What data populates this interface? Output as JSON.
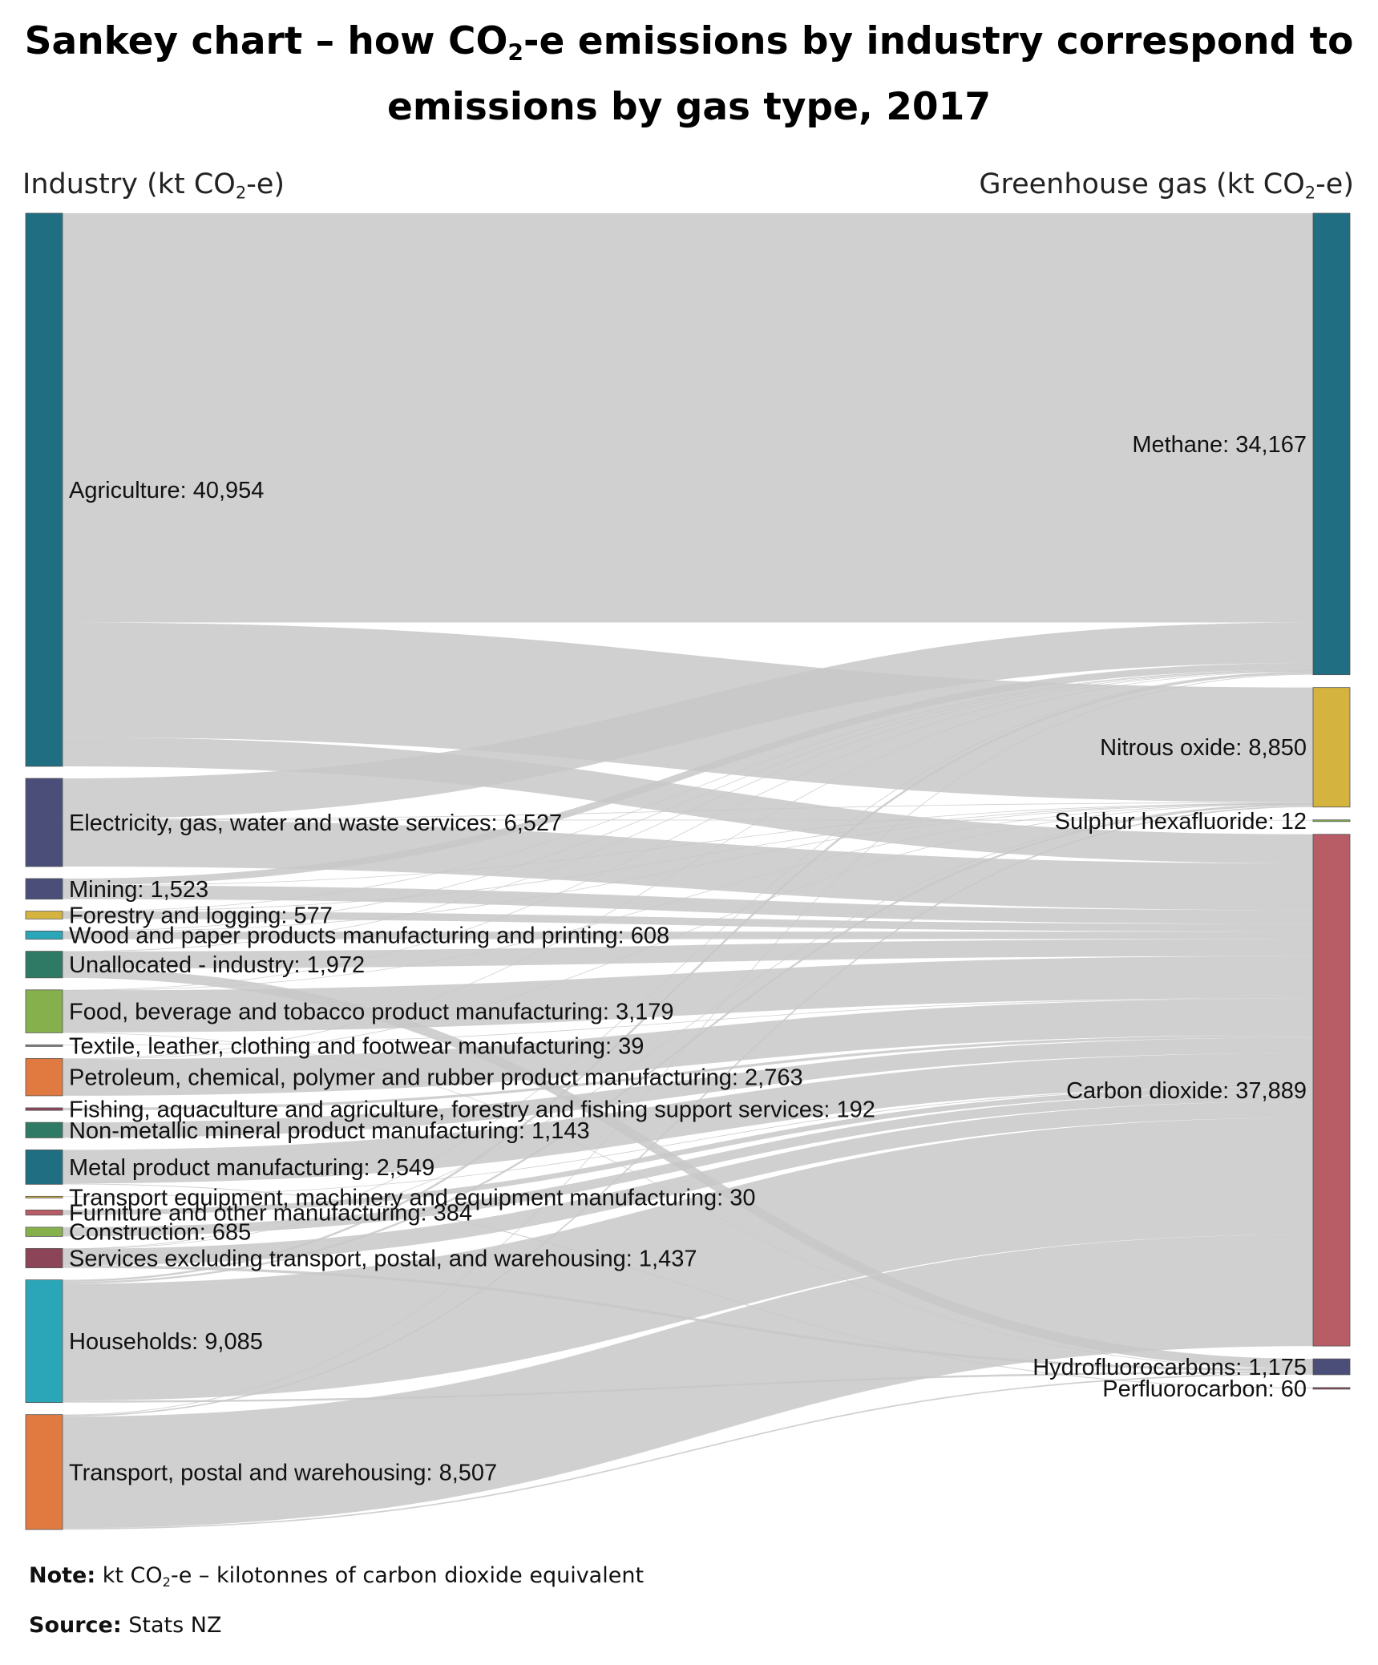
{
  "title": {
    "line1_prefix": "Sankey chart – how CO",
    "line1_sub": "2",
    "line1_suffix": "-e emissions by industry correspond to",
    "line2": "emissions by gas type, 2017"
  },
  "left_axis": {
    "prefix": "Industry (kt CO",
    "sub": "2",
    "suffix": "-e)"
  },
  "right_axis": {
    "prefix": "Greenhouse gas (kt CO",
    "sub": "2",
    "suffix": "-e)"
  },
  "note": {
    "label": "Note:",
    "prefix": " kt CO",
    "sub": "2",
    "suffix": "-e – kilotonnes of carbon dioxide equivalent"
  },
  "source": {
    "label": "Source:",
    "text": " Stats NZ"
  },
  "colors": {
    "link": "#c8c8c8",
    "teal_dark": "#1f6e82",
    "navy": "#4a4e78",
    "mustard": "#d4b43e",
    "cyan": "#2aa6b8",
    "green_dark": "#2f7a64",
    "green_light": "#86b04c",
    "orange": "#e07a40",
    "wine": "#8c4458",
    "rose": "#b85c66",
    "gray": "#888888"
  },
  "chart_data": {
    "type": "sankey",
    "units": "kt CO2-e",
    "sources": [
      {
        "name": "Agriculture",
        "value": 40954,
        "label": "Agriculture: 40,954",
        "color": "#1f6e82"
      },
      {
        "name": "Electricity, gas, water and waste services",
        "value": 6527,
        "label": "Electricity, gas, water and waste services: 6,527",
        "color": "#4a4e78"
      },
      {
        "name": "Mining",
        "value": 1523,
        "label": "Mining: 1,523",
        "color": "#4a4e78"
      },
      {
        "name": "Forestry and logging",
        "value": 577,
        "label": "Forestry and logging: 577",
        "color": "#d4b43e"
      },
      {
        "name": "Wood and paper products manufacturing and printing",
        "value": 608,
        "label": "Wood and paper products manufacturing and printing: 608",
        "color": "#2aa6b8"
      },
      {
        "name": "Unallocated - industry",
        "value": 1972,
        "label": "Unallocated - industry: 1,972",
        "color": "#2f7a64"
      },
      {
        "name": "Food, beverage and tobacco product manufacturing",
        "value": 3179,
        "label": "Food, beverage and tobacco product manufacturing: 3,179",
        "color": "#86b04c"
      },
      {
        "name": "Textile, leather, clothing and footwear manufacturing",
        "value": 39,
        "label": "Textile, leather, clothing and footwear manufacturing: 39",
        "color": "#888888"
      },
      {
        "name": "Petroleum, chemical, polymer and rubber product manufacturing",
        "value": 2763,
        "label": "Petroleum, chemical, polymer and rubber product manufacturing: 2,763",
        "color": "#e07a40"
      },
      {
        "name": "Fishing, aquaculture and agriculture, forestry and fishing support services",
        "value": 192,
        "label": "Fishing, aquaculture and agriculture, forestry and fishing support services: 192",
        "color": "#8c4458"
      },
      {
        "name": "Non-metallic mineral product manufacturing",
        "value": 1143,
        "label": "Non-metallic mineral product manufacturing: 1,143",
        "color": "#2f7a64"
      },
      {
        "name": "Metal product manufacturing",
        "value": 2549,
        "label": "Metal product manufacturing: 2,549",
        "color": "#1f6e82"
      },
      {
        "name": "Transport equipment, machinery and equipment manufacturing",
        "value": 30,
        "label": "Transport equipment, machinery and equipment manufacturing: 30",
        "color": "#d4b43e"
      },
      {
        "name": "Furniture and other manufacturing",
        "value": 384,
        "label": "Furniture and other manufacturing: 384",
        "color": "#b85c66"
      },
      {
        "name": "Construction",
        "value": 685,
        "label": "Construction: 685",
        "color": "#86b04c"
      },
      {
        "name": "Services excluding transport, postal, and warehousing",
        "value": 1437,
        "label": "Services excluding transport, postal, and warehousing: 1,437",
        "color": "#8c4458"
      },
      {
        "name": "Households",
        "value": 9085,
        "label": "Households: 9,085",
        "color": "#2aa6b8"
      },
      {
        "name": "Transport, postal and warehousing",
        "value": 8507,
        "label": "Transport, postal and warehousing: 8,507",
        "color": "#e07a40"
      }
    ],
    "targets": [
      {
        "name": "Methane",
        "value": 34167,
        "label": "Methane: 34,167",
        "color": "#1f6e82"
      },
      {
        "name": "Nitrous oxide",
        "value": 8850,
        "label": "Nitrous oxide: 8,850",
        "color": "#d4b43e"
      },
      {
        "name": "Sulphur hexafluoride",
        "value": 12,
        "label": "Sulphur hexafluoride: 12",
        "color": "#86b04c"
      },
      {
        "name": "Carbon dioxide",
        "value": 37889,
        "label": "Carbon dioxide: 37,889",
        "color": "#b85c66"
      },
      {
        "name": "Hydrofluorocarbons",
        "value": 1175,
        "label": "Hydrofluorocarbons: 1,175",
        "color": "#4a4e78"
      },
      {
        "name": "Perfluorocarbon",
        "value": 60,
        "label": "Perfluorocarbon: 60",
        "color": "#8c4458"
      }
    ],
    "links": [
      {
        "source": "Agriculture",
        "target": "Methane",
        "value": 30300
      },
      {
        "source": "Agriculture",
        "target": "Nitrous oxide",
        "value": 8500
      },
      {
        "source": "Agriculture",
        "target": "Carbon dioxide",
        "value": 2154
      },
      {
        "source": "Electricity, gas, water and waste services",
        "target": "Methane",
        "value": 3000
      },
      {
        "source": "Electricity, gas, water and waste services",
        "target": "Nitrous oxide",
        "value": 50
      },
      {
        "source": "Electricity, gas, water and waste services",
        "target": "Sulphur hexafluoride",
        "value": 12
      },
      {
        "source": "Electricity, gas, water and waste services",
        "target": "Carbon dioxide",
        "value": 3465
      },
      {
        "source": "Mining",
        "target": "Methane",
        "value": 500
      },
      {
        "source": "Mining",
        "target": "Nitrous oxide",
        "value": 5
      },
      {
        "source": "Mining",
        "target": "Carbon dioxide",
        "value": 1018
      },
      {
        "source": "Forestry and logging",
        "target": "Methane",
        "value": 5
      },
      {
        "source": "Forestry and logging",
        "target": "Nitrous oxide",
        "value": 10
      },
      {
        "source": "Forestry and logging",
        "target": "Carbon dioxide",
        "value": 562
      },
      {
        "source": "Wood and paper products manufacturing and printing",
        "target": "Methane",
        "value": 50
      },
      {
        "source": "Wood and paper products manufacturing and printing",
        "target": "Nitrous oxide",
        "value": 5
      },
      {
        "source": "Wood and paper products manufacturing and printing",
        "target": "Carbon dioxide",
        "value": 553
      },
      {
        "source": "Unallocated - industry",
        "target": "Hydrofluorocarbons",
        "value": 700
      },
      {
        "source": "Unallocated - industry",
        "target": "Methane",
        "value": 10
      },
      {
        "source": "Unallocated - industry",
        "target": "Carbon dioxide",
        "value": 1262
      },
      {
        "source": "Food, beverage and tobacco product manufacturing",
        "target": "Methane",
        "value": 30
      },
      {
        "source": "Food, beverage and tobacco product manufacturing",
        "target": "Nitrous oxide",
        "value": 10
      },
      {
        "source": "Food, beverage and tobacco product manufacturing",
        "target": "Hydrofluorocarbons",
        "value": 30
      },
      {
        "source": "Food, beverage and tobacco product manufacturing",
        "target": "Carbon dioxide",
        "value": 3109
      },
      {
        "source": "Textile, leather, clothing and footwear manufacturing",
        "target": "Carbon dioxide",
        "value": 39
      },
      {
        "source": "Petroleum, chemical, polymer and rubber product manufacturing",
        "target": "Methane",
        "value": 50
      },
      {
        "source": "Petroleum, chemical, polymer and rubber product manufacturing",
        "target": "Nitrous oxide",
        "value": 20
      },
      {
        "source": "Petroleum, chemical, polymer and rubber product manufacturing",
        "target": "Carbon dioxide",
        "value": 2693
      },
      {
        "source": "Fishing, aquaculture and agriculture, forestry and fishing support services",
        "target": "Carbon dioxide",
        "value": 192
      },
      {
        "source": "Non-metallic mineral product manufacturing",
        "target": "Carbon dioxide",
        "value": 1143
      },
      {
        "source": "Metal product manufacturing",
        "target": "Carbon dioxide",
        "value": 2489
      },
      {
        "source": "Metal product manufacturing",
        "target": "Perfluorocarbon",
        "value": 60
      },
      {
        "source": "Transport equipment, machinery and equipment manufacturing",
        "target": "Carbon dioxide",
        "value": 30
      },
      {
        "source": "Furniture and other manufacturing",
        "target": "Carbon dioxide",
        "value": 384
      },
      {
        "source": "Construction",
        "target": "Carbon dioxide",
        "value": 685
      },
      {
        "source": "Services excluding transport, postal, and warehousing",
        "target": "Methane",
        "value": 20
      },
      {
        "source": "Services excluding transport, postal, and warehousing",
        "target": "Nitrous oxide",
        "value": 10
      },
      {
        "source": "Services excluding transport, postal, and warehousing",
        "target": "Hydrofluorocarbons",
        "value": 200
      },
      {
        "source": "Services excluding transport, postal, and warehousing",
        "target": "Carbon dioxide",
        "value": 1207
      },
      {
        "source": "Households",
        "target": "Methane",
        "value": 150
      },
      {
        "source": "Households",
        "target": "Nitrous oxide",
        "value": 140
      },
      {
        "source": "Households",
        "target": "Hydrofluorocarbons",
        "value": 145
      },
      {
        "source": "Households",
        "target": "Carbon dioxide",
        "value": 8650
      },
      {
        "source": "Transport, postal and warehousing",
        "target": "Methane",
        "value": 52
      },
      {
        "source": "Transport, postal and warehousing",
        "target": "Nitrous oxide",
        "value": 100
      },
      {
        "source": "Transport, postal and warehousing",
        "target": "Hydrofluorocarbons",
        "value": 100
      },
      {
        "source": "Transport, postal and warehousing",
        "target": "Carbon dioxide",
        "value": 8255
      }
    ]
  }
}
